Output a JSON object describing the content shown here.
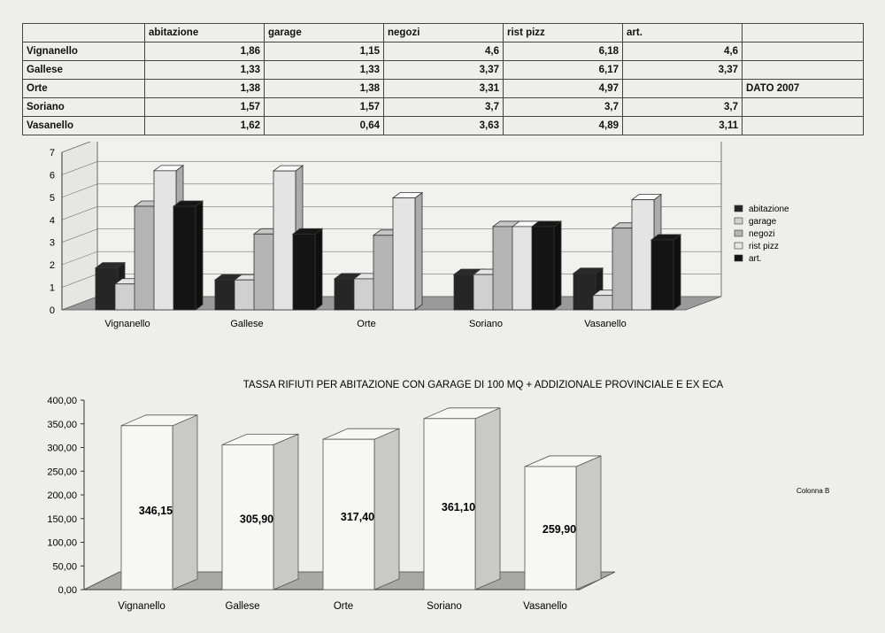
{
  "table": {
    "headers": [
      "",
      "abitazione",
      "garage",
      "negozi",
      "rist pizz",
      "art.",
      ""
    ],
    "rows": [
      {
        "town": "Vignanello",
        "values": [
          "1,86",
          "1,15",
          "4,6",
          "6,18",
          "4,6"
        ],
        "note": ""
      },
      {
        "town": "Gallese",
        "values": [
          "1,33",
          "1,33",
          "3,37",
          "6,17",
          "3,37"
        ],
        "note": ""
      },
      {
        "town": "Orte",
        "values": [
          "1,38",
          "1,38",
          "3,31",
          "4,97",
          ""
        ],
        "note": "DATO 2007"
      },
      {
        "town": "Soriano",
        "values": [
          "1,57",
          "1,57",
          "3,7",
          "3,7",
          "3,7"
        ],
        "note": ""
      },
      {
        "town": "Vasanello",
        "values": [
          "1,62",
          "0,64",
          "3,63",
          "4,89",
          "3,11"
        ],
        "note": ""
      }
    ]
  },
  "chart_data": [
    {
      "type": "bar",
      "style": "3d-clustered",
      "categories": [
        "Vignanello",
        "Gallese",
        "Orte",
        "Soriano",
        "Vasanello"
      ],
      "series": [
        {
          "name": "abitazione",
          "color": "#262626",
          "values": [
            1.86,
            1.33,
            1.38,
            1.57,
            1.62
          ]
        },
        {
          "name": "garage",
          "color": "#d0d0d0",
          "values": [
            1.15,
            1.33,
            1.38,
            1.57,
            0.64
          ]
        },
        {
          "name": "negozi",
          "color": "#b4b4b4",
          "values": [
            4.6,
            3.37,
            3.31,
            3.7,
            3.63
          ]
        },
        {
          "name": "rist pizz",
          "color": "#e4e4e4",
          "values": [
            6.18,
            6.17,
            4.97,
            3.7,
            4.89
          ]
        },
        {
          "name": "art.",
          "color": "#141414",
          "values": [
            4.6,
            3.37,
            0,
            3.7,
            3.11
          ]
        }
      ],
      "yticks": [
        "0",
        "1",
        "2",
        "3",
        "4",
        "5",
        "6",
        "7"
      ],
      "ylim": [
        0,
        7
      ],
      "legend_position": "right",
      "grid": true
    },
    {
      "type": "bar",
      "style": "3d-column",
      "title": "TASSA RIFIUTI PER ABITAZIONE CON GARAGE DI 100 MQ + ADDIZIONALE PROVINCIALE E EX ECA",
      "categories": [
        "Vignanello",
        "Gallese",
        "Orte",
        "Soriano",
        "Vasanello"
      ],
      "series": [
        {
          "name": "Colonna B",
          "values": [
            346.15,
            305.9,
            317.4,
            361.1,
            259.9
          ]
        }
      ],
      "value_labels": [
        "346,15",
        "305,90",
        "317,40",
        "361,10",
        "259,90"
      ],
      "yticks": [
        "0,00",
        "50,00",
        "100,00",
        "150,00",
        "200,00",
        "250,00",
        "300,00",
        "350,00",
        "400,00"
      ],
      "ylim": [
        0,
        400
      ],
      "legend_position": "right",
      "grid": false
    }
  ]
}
